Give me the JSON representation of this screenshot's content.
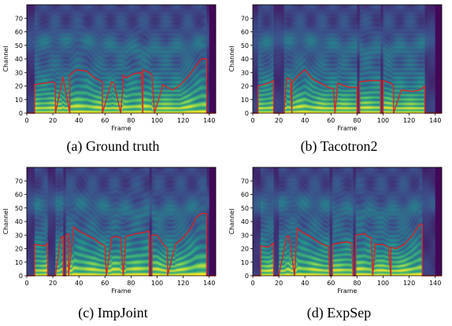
{
  "figure": {
    "panels": [
      {
        "id": "a",
        "caption": "(a) Ground truth"
      },
      {
        "id": "b",
        "caption": "(b) Tacotron2"
      },
      {
        "id": "c",
        "caption": "(c) ImpJoint"
      },
      {
        "id": "d",
        "caption": "(d) ExpSep"
      }
    ]
  },
  "chart_data": [
    {
      "type": "heatmap",
      "title": "",
      "xlabel": "Frame",
      "ylabel": "Channel",
      "xlim": [
        0,
        145
      ],
      "ylim": [
        0,
        80
      ],
      "xticks": [
        0,
        20,
        40,
        60,
        80,
        100,
        120,
        140
      ],
      "yticks": [
        0,
        10,
        20,
        30,
        40,
        50,
        60,
        70
      ],
      "n_frames": 140,
      "overlay_color": "#d62728",
      "overlay": {
        "x": [
          0,
          6,
          6,
          20,
          22,
          22,
          28,
          28,
          33,
          33,
          38,
          46,
          52,
          58,
          58,
          65,
          67,
          72,
          72,
          74,
          74,
          76,
          82,
          88,
          89,
          89,
          94,
          96,
          98,
          98,
          104,
          104,
          112,
          118,
          124,
          130,
          134,
          138,
          138,
          145
        ],
        "y": [
          0,
          0,
          21,
          23,
          22,
          0,
          27,
          26,
          0,
          28,
          32,
          31,
          26,
          23,
          0,
          23,
          22,
          0,
          0,
          22,
          28,
          26,
          29,
          30,
          0,
          32,
          30,
          28,
          0,
          0,
          19,
          21,
          17,
          21,
          27,
          35,
          40,
          40,
          0,
          0
        ]
      }
    },
    {
      "type": "heatmap",
      "title": "",
      "xlabel": "Frame",
      "ylabel": "Channel",
      "xlim": [
        0,
        145
      ],
      "ylim": [
        0,
        80
      ],
      "xticks": [
        0,
        20,
        40,
        60,
        80,
        100,
        120,
        140
      ],
      "yticks": [
        0,
        10,
        20,
        30,
        40,
        50,
        60,
        70
      ],
      "n_frames": 140,
      "overlay_color": "#d62728",
      "overlay": {
        "x": [
          0,
          4,
          4,
          12,
          16,
          16,
          24,
          26,
          29,
          30,
          30,
          34,
          40,
          46,
          52,
          58,
          62,
          63,
          63,
          65,
          65,
          68,
          74,
          80,
          80,
          82,
          82,
          90,
          98,
          98,
          100,
          100,
          106,
          108,
          108,
          114,
          122,
          128,
          132,
          132,
          145
        ],
        "y": [
          0,
          0,
          20,
          22,
          24,
          0,
          0,
          26,
          25,
          0,
          22,
          27,
          32,
          25,
          22,
          19,
          18,
          0,
          0,
          20,
          22,
          21,
          19,
          19,
          0,
          0,
          23,
          24,
          24,
          0,
          0,
          24,
          22,
          20,
          0,
          17,
          16,
          17,
          20,
          0,
          0
        ]
      }
    },
    {
      "type": "heatmap",
      "title": "",
      "xlabel": "Frame",
      "ylabel": "Channel",
      "xlim": [
        0,
        145
      ],
      "ylim": [
        0,
        80
      ],
      "xticks": [
        0,
        20,
        40,
        60,
        80,
        100,
        120,
        140
      ],
      "yticks": [
        0,
        10,
        20,
        30,
        40,
        50,
        60,
        70
      ],
      "n_frames": 140,
      "overlay_color": "#d62728",
      "overlay": {
        "x": [
          0,
          6,
          6,
          14,
          16,
          16,
          22,
          26,
          28,
          28,
          30,
          30,
          32,
          32,
          36,
          40,
          46,
          52,
          56,
          60,
          61,
          61,
          65,
          65,
          68,
          72,
          74,
          74,
          76,
          76,
          84,
          90,
          94,
          94,
          96,
          96,
          100,
          104,
          108,
          108,
          114,
          120,
          126,
          130,
          134,
          138,
          138,
          145
        ],
        "y": [
          0,
          0,
          23,
          22,
          24,
          0,
          0,
          28,
          29,
          0,
          0,
          30,
          31,
          0,
          36,
          33,
          30,
          27,
          24,
          22,
          0,
          0,
          26,
          28,
          29,
          28,
          0,
          0,
          28,
          29,
          31,
          32,
          33,
          0,
          0,
          30,
          30,
          24,
          20,
          0,
          23,
          28,
          35,
          43,
          46,
          46,
          0,
          0
        ]
      }
    },
    {
      "type": "heatmap",
      "title": "",
      "xlabel": "Frame",
      "ylabel": "Channel",
      "xlim": [
        0,
        145
      ],
      "ylim": [
        0,
        80
      ],
      "xticks": [
        0,
        20,
        40,
        60,
        80,
        100,
        120,
        140
      ],
      "yticks": [
        0,
        10,
        20,
        30,
        40,
        50,
        60,
        70
      ],
      "n_frames": 140,
      "overlay_color": "#d62728",
      "overlay": {
        "x": [
          0,
          6,
          6,
          12,
          16,
          16,
          20,
          20,
          26,
          28,
          32,
          32,
          34,
          38,
          44,
          50,
          56,
          58,
          59,
          59,
          61,
          61,
          66,
          72,
          76,
          77,
          77,
          79,
          79,
          86,
          88,
          91,
          92,
          92,
          94,
          94,
          100,
          104,
          106,
          106,
          110,
          116,
          122,
          126,
          128,
          130,
          130,
          145
        ],
        "y": [
          0,
          0,
          22,
          21,
          24,
          0,
          0,
          0,
          29,
          29,
          0,
          0,
          35,
          32,
          29,
          25,
          22,
          22,
          0,
          0,
          0,
          23,
          24,
          25,
          24,
          0,
          0,
          0,
          30,
          31,
          29,
          28,
          0,
          0,
          24,
          23,
          23,
          21,
          0,
          21,
          20,
          23,
          29,
          35,
          38,
          38,
          0,
          0
        ]
      }
    }
  ]
}
